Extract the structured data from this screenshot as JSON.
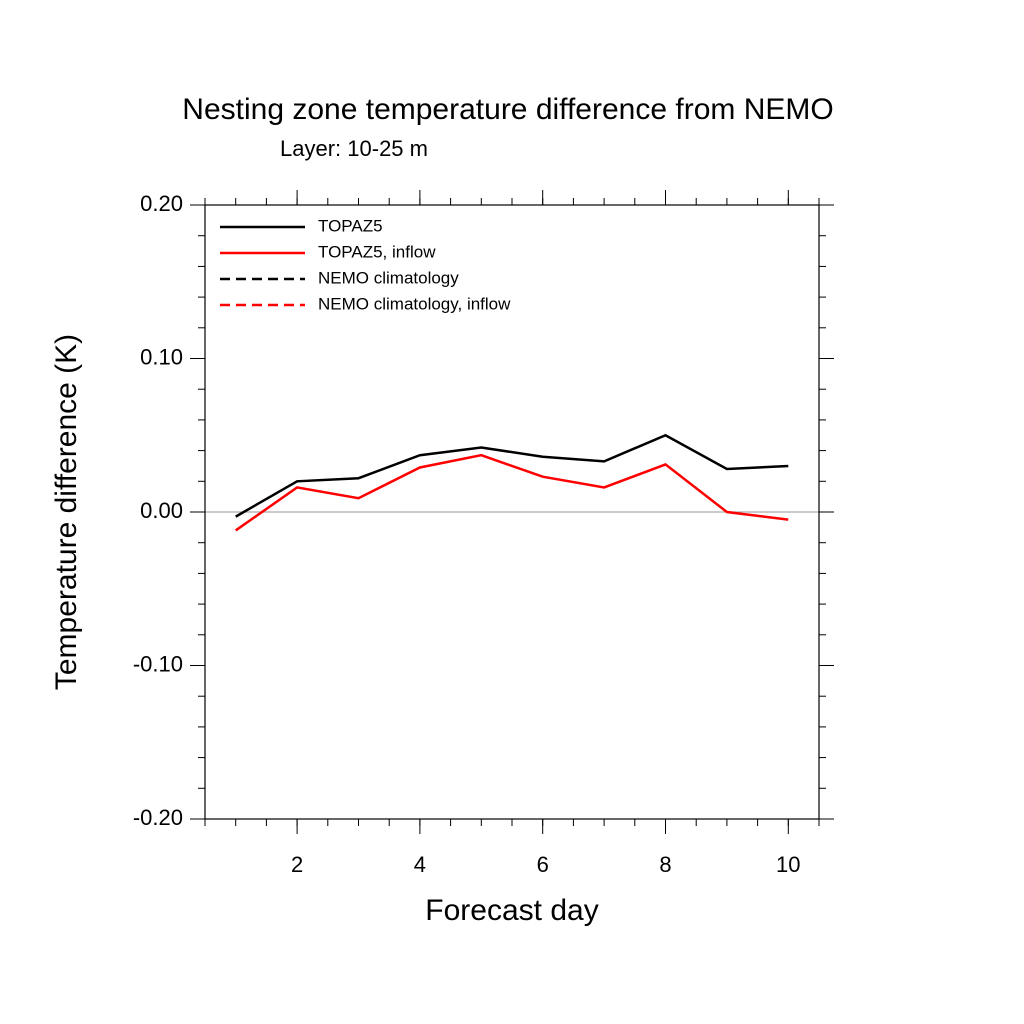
{
  "chart_data": {
    "type": "line",
    "title": "Nesting zone temperature difference from NEMO",
    "subtitle": "Layer: 10-25 m",
    "x_label": "Forecast day",
    "y_label": "Temperature difference (K)",
    "x": [
      1,
      2,
      3,
      4,
      5,
      6,
      7,
      8,
      9,
      10
    ],
    "series": [
      {
        "name": "TOPAZ5",
        "color": "#000000",
        "dash": false,
        "values": [
          -0.003,
          0.02,
          0.022,
          0.037,
          0.042,
          0.036,
          0.033,
          0.05,
          0.028,
          0.03
        ]
      },
      {
        "name": "TOPAZ5, inflow",
        "color": "#ff0000",
        "dash": false,
        "values": [
          -0.012,
          0.016,
          0.009,
          0.029,
          0.037,
          0.023,
          0.016,
          0.031,
          0.0,
          -0.005
        ]
      },
      {
        "name": "NEMO climatology",
        "color": "#000000",
        "dash": true,
        "values": [
          null,
          null,
          null,
          null,
          null,
          null,
          null,
          null,
          null,
          null
        ]
      },
      {
        "name": "NEMO climatology, inflow",
        "color": "#ff0000",
        "dash": true,
        "values": [
          null,
          null,
          null,
          null,
          null,
          null,
          null,
          null,
          null,
          null
        ]
      }
    ],
    "xlim": [
      0.5,
      10.5
    ],
    "xticks": [
      2,
      4,
      6,
      8,
      10
    ],
    "ylim": [
      -0.2,
      0.2
    ],
    "yticks": [
      {
        "value": 0.2,
        "label": "0.20"
      },
      {
        "value": 0.1,
        "label": "0.10"
      },
      {
        "value": 0,
        "label": "0.00"
      },
      {
        "value": -0.1,
        "label": "-0.10"
      },
      {
        "value": -0.2,
        "label": "-0.20"
      }
    ],
    "legend": "top-left"
  }
}
